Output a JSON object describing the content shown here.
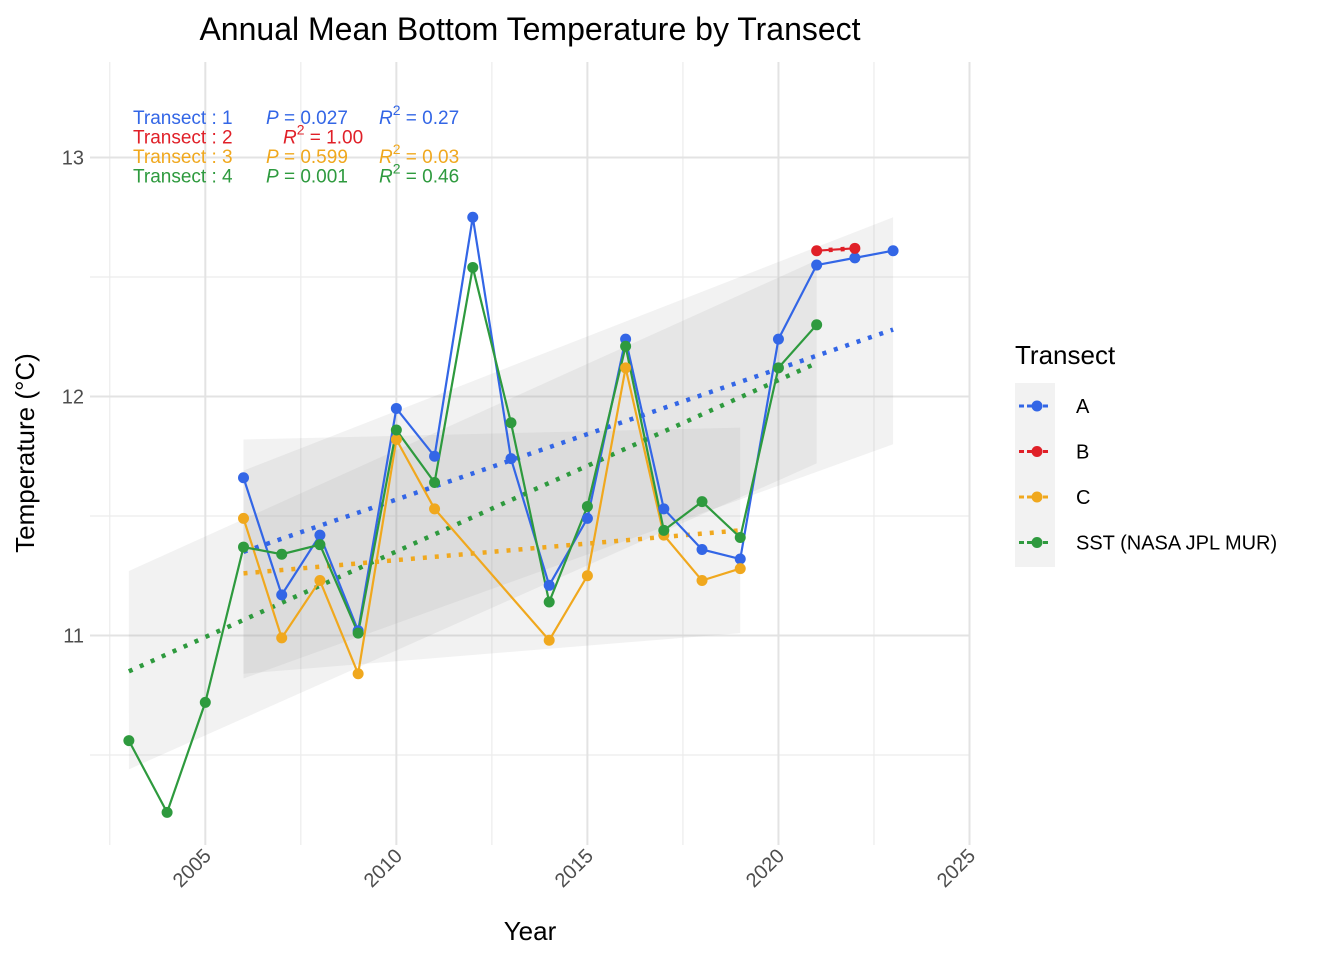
{
  "chart_data": {
    "type": "line",
    "title": "Annual Mean Bottom Temperature by Transect",
    "xlabel": "Year",
    "ylabel": "Temperature (°C)",
    "xlim": [
      2002.5,
      2025.5
    ],
    "ylim": [
      10.2,
      13.4
    ],
    "x_ticks": [
      2005,
      2010,
      2015,
      2020,
      2025
    ],
    "y_ticks": [
      11,
      12,
      13
    ],
    "grid": true,
    "legend": {
      "title": "Transect",
      "position": "right"
    },
    "series": [
      {
        "name": "A",
        "color": "#3366E6",
        "x": [
          2006,
          2007,
          2008,
          2009,
          2010,
          2011,
          2012,
          2013,
          2014,
          2015,
          2016,
          2017,
          2018,
          2019,
          2020,
          2021,
          2022,
          2023
        ],
        "y": [
          11.66,
          11.17,
          11.42,
          11.02,
          11.95,
          11.75,
          12.75,
          11.74,
          11.21,
          11.49,
          12.24,
          11.53,
          11.36,
          11.32,
          12.24,
          12.55,
          12.58,
          12.61
        ],
        "trend": {
          "x0": 2006,
          "y0": 11.35,
          "x1": 2023,
          "y1": 12.28
        },
        "band": {
          "x": [
            2006,
            2023
          ],
          "upper": [
            11.69,
            12.75
          ],
          "lower": [
            10.82,
            11.8
          ]
        }
      },
      {
        "name": "B",
        "color": "#E02028",
        "x": [
          2021,
          2022
        ],
        "y": [
          12.61,
          12.62
        ],
        "trend": {
          "x0": 2021,
          "y0": 12.61,
          "x1": 2022,
          "y1": 12.62
        }
      },
      {
        "name": "C",
        "color": "#F0A81E",
        "x": [
          2006,
          2007,
          2008,
          2009,
          2010,
          2011,
          2014,
          2015,
          2016,
          2017,
          2018,
          2019
        ],
        "y": [
          11.49,
          10.99,
          11.23,
          10.84,
          11.82,
          11.53,
          10.98,
          11.25,
          12.12,
          11.42,
          11.23,
          11.28
        ],
        "trend": {
          "x0": 2006,
          "y0": 11.26,
          "x1": 2019,
          "y1": 11.44
        },
        "band": {
          "x": [
            2006,
            2019
          ],
          "upper": [
            11.82,
            11.87
          ],
          "lower": [
            10.84,
            11.01
          ]
        }
      },
      {
        "name": "SST (NASA JPL MUR)",
        "color": "#2E9A3E",
        "x": [
          2003,
          2004,
          2005,
          2006,
          2007,
          2008,
          2009,
          2010,
          2011,
          2012,
          2013,
          2014,
          2015,
          2016,
          2017,
          2018,
          2019,
          2020,
          2021
        ],
        "y": [
          10.56,
          10.26,
          10.72,
          11.37,
          11.34,
          11.38,
          11.01,
          11.86,
          11.64,
          12.54,
          11.89,
          11.14,
          11.54,
          12.21,
          11.44,
          11.56,
          11.41,
          12.12,
          12.3
        ],
        "trend": {
          "x0": 2003,
          "y0": 10.85,
          "x1": 2021,
          "y1": 12.14
        },
        "band": {
          "x": [
            2003,
            2021
          ],
          "upper": [
            11.27,
            12.57
          ],
          "lower": [
            10.44,
            11.72
          ]
        }
      }
    ],
    "annotations": [
      {
        "color": "#3366E6",
        "label": "Transect : 1",
        "p": "P = 0.027",
        "r2": "R",
        "r2_sup": "2",
        "r2_val": " = 0.27"
      },
      {
        "color": "#E02028",
        "label": "Transect : 2",
        "p": "",
        "r2": "R",
        "r2_sup": "2",
        "r2_val": " = 1.00"
      },
      {
        "color": "#F0A81E",
        "label": "Transect : 3",
        "p": "P = 0.599",
        "r2": "R",
        "r2_sup": "2",
        "r2_val": " = 0.03"
      },
      {
        "color": "#2E9A3E",
        "label": "Transect : 4",
        "p": "P = 0.001",
        "r2": "R",
        "r2_sup": "2",
        "r2_val": " = 0.46"
      }
    ]
  }
}
